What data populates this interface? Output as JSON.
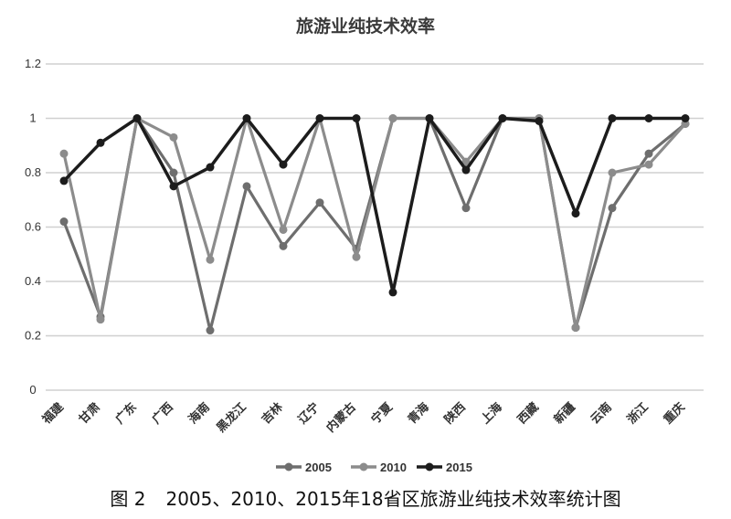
{
  "chart_data": {
    "type": "line",
    "title": "旅游业纯技术效率",
    "categories": [
      "福建",
      "甘肃",
      "广东",
      "广西",
      "海南",
      "黑龙江",
      "吉林",
      "辽宁",
      "内蒙古",
      "宁夏",
      "青海",
      "陕西",
      "上海",
      "西藏",
      "新疆",
      "云南",
      "浙江",
      "重庆"
    ],
    "series": [
      {
        "name": "2005",
        "color": "#6e6e6e",
        "values": [
          0.62,
          0.27,
          1.0,
          0.8,
          0.22,
          0.75,
          0.53,
          0.69,
          0.52,
          1.0,
          1.0,
          0.67,
          1.0,
          1.0,
          0.23,
          0.67,
          0.87,
          0.98
        ]
      },
      {
        "name": "2010",
        "color": "#8c8c8c",
        "values": [
          0.87,
          0.26,
          1.0,
          0.93,
          0.48,
          1.0,
          0.59,
          1.0,
          0.49,
          1.0,
          1.0,
          0.84,
          1.0,
          1.0,
          0.23,
          0.8,
          0.83,
          0.98
        ]
      },
      {
        "name": "2015",
        "color": "#1c1c1c",
        "values": [
          0.77,
          0.91,
          1.0,
          0.75,
          0.82,
          1.0,
          0.83,
          1.0,
          1.0,
          0.36,
          1.0,
          0.81,
          1.0,
          0.99,
          0.65,
          1.0,
          1.0,
          1.0
        ]
      }
    ],
    "y_ticks": [
      "0",
      "0.2",
      "0.4",
      "0.6",
      "0.8",
      "1",
      "1.2"
    ],
    "ylim": [
      0,
      1.2
    ],
    "grid": true,
    "legend_position": "bottom"
  },
  "caption": {
    "figure_number": "图 2",
    "text": "2005、2010、2015年18省区旅游业纯技术效率统计图"
  }
}
